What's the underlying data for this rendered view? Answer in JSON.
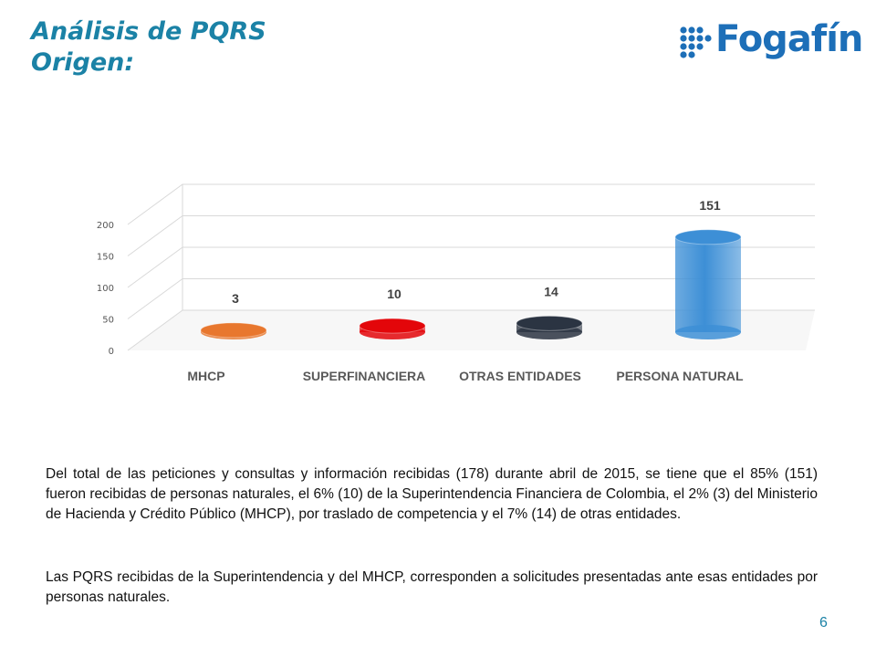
{
  "header": {
    "title_line1": "Análisis de PQRS",
    "title_line2": "Origen:"
  },
  "logo": {
    "text": "Fogafín",
    "color": "#1d6fb8"
  },
  "chart_data": {
    "type": "bar",
    "categories": [
      "MHCP",
      "SUPERFINANCIERA",
      "OTRAS ENTIDADES",
      "PERSONA NATURAL"
    ],
    "values": [
      3,
      10,
      14,
      151
    ],
    "data_labels": [
      "3",
      "10",
      "14",
      "151"
    ],
    "yticks": [
      0,
      50,
      100,
      150,
      200
    ],
    "ylim": [
      0,
      200
    ],
    "grid": true,
    "colors": [
      "#e8772e",
      "#e3060a",
      "#2b3442",
      "#3d8fd6"
    ]
  },
  "body": {
    "paragraph1": "Del total de las peticiones y consultas y información recibidas (178) durante abril de 2015, se tiene que el 85% (151) fueron recibidas de personas naturales, el 6% (10) de la Superintendencia Financiera de Colombia, el 2% (3) del Ministerio de Hacienda y Crédito Público (MHCP), por traslado de competencia y el 7% (14) de otras entidades.",
    "paragraph2": "Las PQRS recibidas de la Superintendencia y del MHCP, corresponden a solicitudes presentadas ante esas entidades por personas naturales."
  },
  "footer": {
    "page_number": "6"
  }
}
